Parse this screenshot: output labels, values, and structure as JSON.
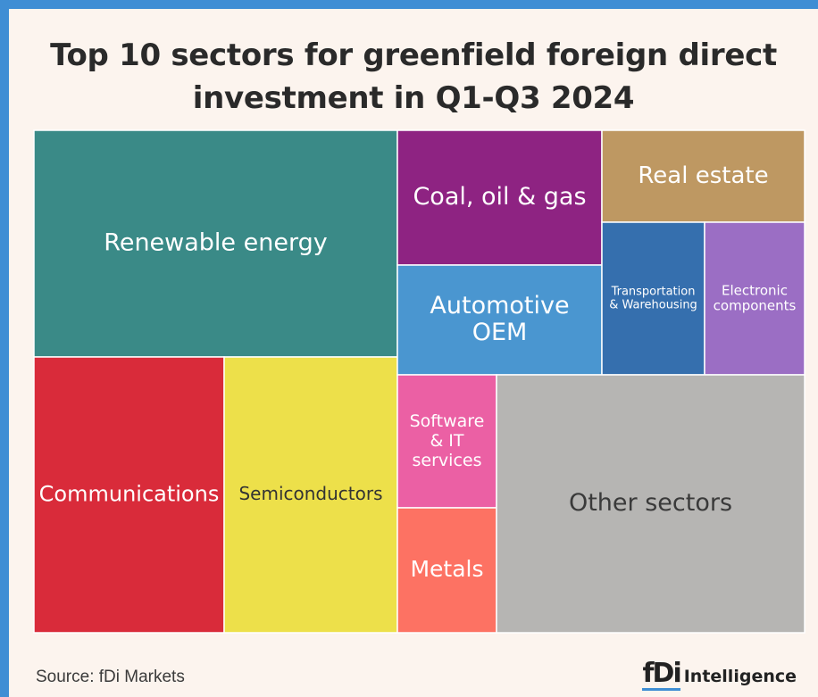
{
  "chart_data": {
    "type": "treemap",
    "title_line1": "Top 10 sectors for greenfield foreign direct",
    "title_line2": "investment in Q1-Q3 2024",
    "tiles": [
      {
        "key": "renewable",
        "label": [
          "Renewable energy"
        ],
        "color": "#3a8a87",
        "text_color": "#ffffff"
      },
      {
        "key": "communications",
        "label": [
          "Communications"
        ],
        "color": "#d92b3a",
        "text_color": "#ffffff"
      },
      {
        "key": "semiconductors",
        "label": [
          "Semiconductors"
        ],
        "color": "#ede04a",
        "text_color": "#333333"
      },
      {
        "key": "coal",
        "label": [
          "Coal, oil & gas"
        ],
        "color": "#8e2382",
        "text_color": "#ffffff"
      },
      {
        "key": "automotive",
        "label": [
          "Automotive",
          "OEM"
        ],
        "color": "#4a96d0",
        "text_color": "#ffffff"
      },
      {
        "key": "realestate",
        "label": [
          "Real estate"
        ],
        "color": "#be9862",
        "text_color": "#ffffff"
      },
      {
        "key": "transport",
        "label": [
          "Transportation",
          "& Warehousing"
        ],
        "color": "#356fae",
        "text_color": "#ffffff"
      },
      {
        "key": "electronic",
        "label": [
          "Electronic",
          "components"
        ],
        "color": "#9b6ec4",
        "text_color": "#ffffff"
      },
      {
        "key": "software",
        "label": [
          "Software",
          "& IT",
          "services"
        ],
        "color": "#eb60a4",
        "text_color": "#ffffff"
      },
      {
        "key": "metals",
        "label": [
          "Metals"
        ],
        "color": "#fd7263",
        "text_color": "#ffffff"
      },
      {
        "key": "other",
        "label": [
          "Other sectors"
        ],
        "color": "#b6b5b3",
        "text_color": "#3a3a3a"
      }
    ]
  },
  "footer": {
    "source": "Source: fDi Markets",
    "brand_mark": "fDi",
    "brand_word": "Intelligence"
  }
}
